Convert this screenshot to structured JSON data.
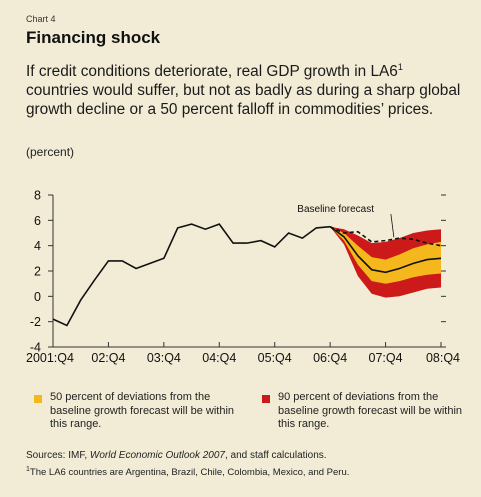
{
  "header": {
    "chart_label": "Chart 4",
    "title": "Financing shock",
    "subtitle": "If credit conditions deteriorate, real GDP growth in LA6",
    "footnote_ref": "1",
    "subtitle_rest": " countries would suffer, but not as badly as during a sharp global growth decline or a 50 percent falloff in commodities’ prices.",
    "unit": "(percent)"
  },
  "legend": {
    "item1": {
      "label": "50 percent of deviations from the baseline growth forecast will be within this range.",
      "color": "#f5b81c"
    },
    "item2": {
      "label": "90 percent of deviations from the baseline growth forecast will be within this range.",
      "color": "#cc1a1a"
    }
  },
  "footer": {
    "sources_prefix": "Sources: IMF, ",
    "sources_italic": "World Economic Outlook 2007",
    "sources_suffix": ", and staff calculations.",
    "footnote_mark": "1",
    "footnote_text": "The LA6 countries are Argentina, Brazil, Chile, Colombia, Mexico, and Peru."
  },
  "chart_data": {
    "type": "line",
    "ylim": [
      -4,
      8
    ],
    "yticks": [
      -4,
      -2,
      0,
      2,
      4,
      6,
      8
    ],
    "xlim": [
      0,
      28
    ],
    "xticks": [
      {
        "x": 0,
        "label": "2001:Q4"
      },
      {
        "x": 4,
        "label": "02:Q4"
      },
      {
        "x": 8,
        "label": "03:Q4"
      },
      {
        "x": 12,
        "label": "04:Q4"
      },
      {
        "x": 16,
        "label": "05:Q4"
      },
      {
        "x": 20,
        "label": "06:Q4"
      },
      {
        "x": 24,
        "label": "07:Q4"
      },
      {
        "x": 28,
        "label": "08:Q4"
      }
    ],
    "annotation": "Baseline forecast",
    "series": [
      {
        "name": "Actual",
        "x": [
          0,
          1,
          2,
          3,
          4,
          5,
          6,
          7,
          8,
          9,
          10,
          11,
          12,
          13,
          14,
          15,
          16,
          17,
          18,
          19,
          20
        ],
        "values": [
          -1.8,
          -2.3,
          -0.3,
          1.3,
          2.8,
          2.8,
          2.2,
          2.6,
          3.0,
          5.4,
          5.7,
          5.3,
          5.7,
          4.2,
          4.2,
          4.4,
          3.9,
          5.0,
          4.6,
          5.4,
          5.5
        ]
      },
      {
        "name": "Baseline forecast",
        "x": [
          20,
          21,
          22,
          23,
          24,
          25,
          26,
          27,
          28
        ],
        "values": [
          5.5,
          5.0,
          5.1,
          4.3,
          4.4,
          4.6,
          4.5,
          4.2,
          4.0
        ]
      },
      {
        "name": "Central projection",
        "x": [
          20,
          21,
          22,
          23,
          24,
          25,
          26,
          27,
          28
        ],
        "values": [
          5.5,
          4.7,
          3.2,
          2.1,
          1.9,
          2.2,
          2.6,
          2.9,
          3.0
        ]
      }
    ],
    "fan": {
      "x": [
        20,
        21,
        22,
        23,
        24,
        25,
        26,
        27,
        28
      ],
      "band90_upper": [
        5.5,
        5.3,
        4.8,
        4.2,
        4.3,
        4.6,
        5.0,
        5.2,
        5.3
      ],
      "band50_upper": [
        5.5,
        5.0,
        4.0,
        3.1,
        2.9,
        3.3,
        3.8,
        4.1,
        4.3
      ],
      "band50_lower": [
        5.5,
        4.4,
        2.5,
        1.2,
        1.0,
        1.2,
        1.5,
        1.7,
        1.8
      ],
      "band90_lower": [
        5.5,
        4.1,
        1.6,
        0.2,
        -0.1,
        0.0,
        0.3,
        0.6,
        0.7
      ]
    }
  }
}
